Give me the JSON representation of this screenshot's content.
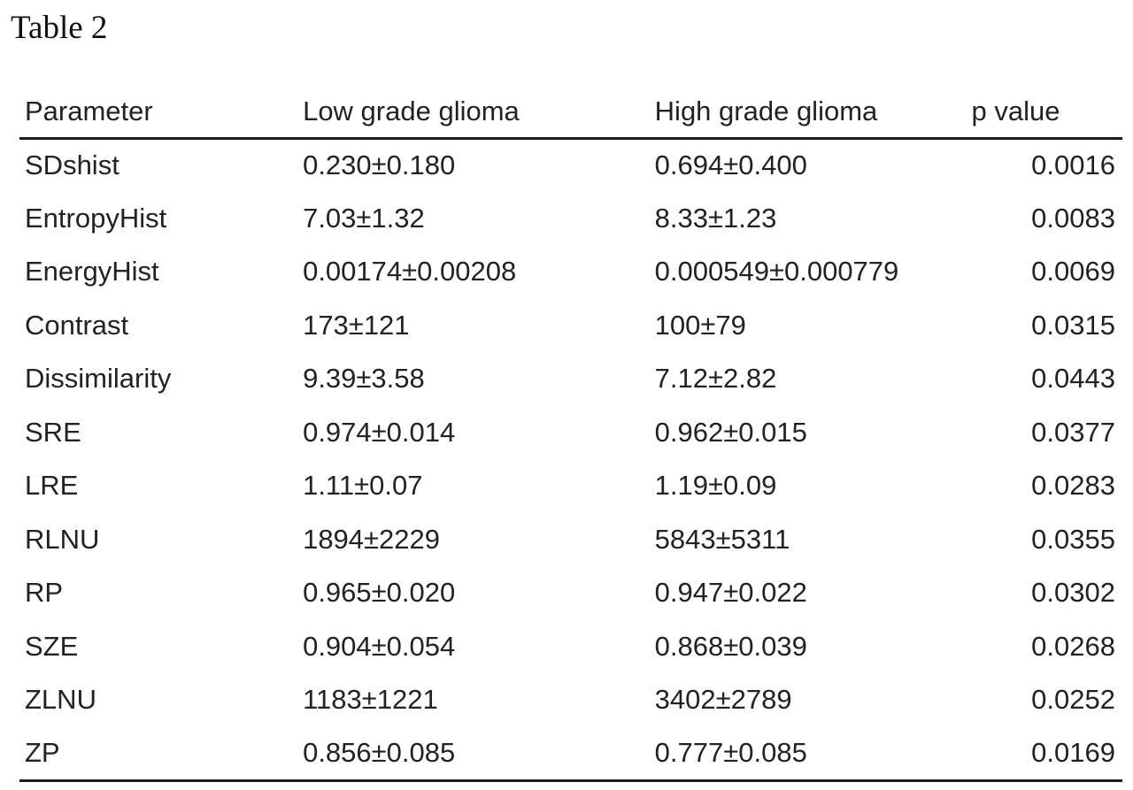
{
  "title": "Table 2",
  "table": {
    "headers": [
      "Parameter",
      "Low grade glioma",
      "High grade glioma",
      "p value"
    ],
    "rows": [
      {
        "parameter": "SDshist",
        "low": "0.230±0.180",
        "high": "0.694±0.400",
        "p": "0.0016"
      },
      {
        "parameter": "EntropyHist",
        "low": "7.03±1.32",
        "high": "8.33±1.23",
        "p": "0.0083"
      },
      {
        "parameter": "EnergyHist",
        "low": "0.00174±0.00208",
        "high": "0.000549±0.000779",
        "p": "0.0069"
      },
      {
        "parameter": "Contrast",
        "low": "173±121",
        "high": "100±79",
        "p": "0.0315"
      },
      {
        "parameter": "Dissimilarity",
        "low": "9.39±3.58",
        "high": "7.12±2.82",
        "p": "0.0443"
      },
      {
        "parameter": "SRE",
        "low": "0.974±0.014",
        "high": "0.962±0.015",
        "p": "0.0377"
      },
      {
        "parameter": "LRE",
        "low": "1.11±0.07",
        "high": "1.19±0.09",
        "p": "0.0283"
      },
      {
        "parameter": "RLNU",
        "low": "1894±2229",
        "high": "5843±5311",
        "p": "0.0355"
      },
      {
        "parameter": "RP",
        "low": "0.965±0.020",
        "high": "0.947±0.022",
        "p": "0.0302"
      },
      {
        "parameter": "SZE",
        "low": "0.904±0.054",
        "high": "0.868±0.039",
        "p": "0.0268"
      },
      {
        "parameter": "ZLNU",
        "low": "1183±1221",
        "high": "3402±2789",
        "p": "0.0252"
      },
      {
        "parameter": "ZP",
        "low": "0.856±0.085",
        "high": "0.777±0.085",
        "p": "0.0169"
      }
    ]
  }
}
